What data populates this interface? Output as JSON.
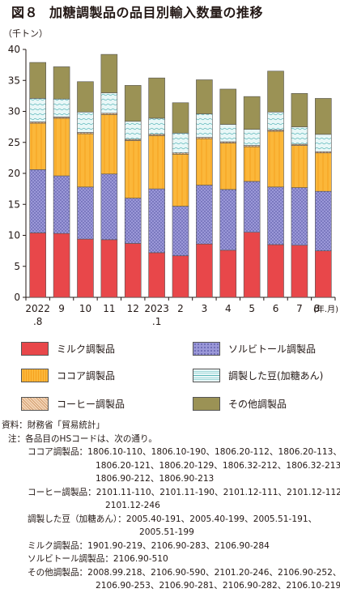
{
  "title": {
    "figure_no": "図８",
    "text": "加糖調製品の品目別輸入数量の推移"
  },
  "chart_data": {
    "type": "bar",
    "stacked": true,
    "unit_label": "（千トン）",
    "categories": [
      "2022\n.8",
      "9",
      "10",
      "11",
      "12",
      "2023\n.1",
      "2",
      "3",
      "4",
      "5",
      "6",
      "7",
      "8"
    ],
    "x_unit_label": "(年.月)",
    "ylim": [
      0,
      40
    ],
    "yticks": [
      0,
      5,
      10,
      15,
      20,
      25,
      30,
      35,
      40
    ],
    "grid": false,
    "legend_placement": "bottom",
    "series": [
      {
        "name": "ミルク調製品",
        "color": "#e8474a",
        "values": [
          10.4,
          10.3,
          9.4,
          9.3,
          8.7,
          7.2,
          6.7,
          8.6,
          7.6,
          10.5,
          8.5,
          8.4,
          7.5
        ]
      },
      {
        "name": "ソルビトール調製品",
        "color": "#8a86cc",
        "values": [
          10.2,
          9.3,
          8.4,
          10.6,
          7.3,
          10.3,
          8.0,
          9.5,
          9.8,
          8.2,
          9.3,
          9.3,
          9.6
        ]
      },
      {
        "name": "ココア調製品",
        "color": "#fbb73a",
        "values": [
          7.5,
          9.3,
          8.6,
          9.6,
          9.3,
          8.6,
          8.4,
          7.5,
          7.5,
          5.6,
          9.0,
          6.8,
          6.2
        ]
      },
      {
        "name": "コーヒー調製品",
        "color": "#d9a579",
        "values": [
          0.2,
          0.2,
          0.2,
          0.2,
          0.2,
          0.2,
          0.2,
          0.2,
          0.2,
          0.2,
          0.2,
          0.2,
          0.2
        ]
      },
      {
        "name": "調製した豆(加糖あん)",
        "color": "#bfe6e6",
        "values": [
          3.8,
          2.9,
          3.3,
          3.3,
          2.9,
          2.6,
          3.2,
          3.8,
          2.8,
          2.6,
          2.9,
          2.8,
          2.8
        ]
      },
      {
        "name": "その他調製品",
        "color": "#9b9255",
        "values": [
          5.8,
          5.2,
          4.9,
          6.2,
          5.8,
          6.5,
          4.9,
          5.5,
          5.7,
          5.3,
          6.6,
          5.4,
          5.8
        ]
      }
    ]
  },
  "legend_order": [
    0,
    1,
    2,
    4,
    3,
    5
  ],
  "notes": {
    "source": "資料：財務省「貿易統計」",
    "note_head": "注：各品目のHSコードは、次の通り。",
    "cocoa_1": "ココア調製品：1806.10-110、1806.10-190、1806.20-112、1806.20-113、",
    "cocoa_2": "1806.20-121、1806.20-129、1806.32-212、1806.32-213、",
    "cocoa_3": "1806.90-212、1806.90-213",
    "coffee_1": "コーヒー調製品：2101.11-110、2101.11-190、2101.12-111、2101.12-112、",
    "coffee_2": "2101.12-246",
    "bean_1": "調製した豆（加糖あん）：2005.40-191、2005.40-199、2005.51-191、",
    "bean_2": "2005.51-199",
    "milk_1": "ミルク調製品：1901.90-219、2106.90-283、2106.90-284",
    "sorbitol_1": "ソルビトール調製品：2106.90-510",
    "other_1": "その他調製品：2008.99.218、2106.90-590、2101.20-246、2106.90-252、",
    "other_2": "2106.90-253、2106.90-281、2106.90-282、2106.10-219"
  }
}
